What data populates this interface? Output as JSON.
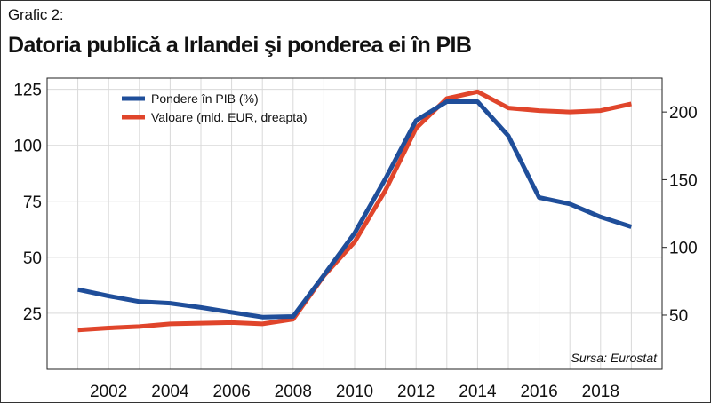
{
  "header": {
    "label": "Grafic 2:",
    "title": "Datoria publică a Irlandei şi ponderea ei în PIB"
  },
  "chart_data": {
    "type": "line",
    "title": "Datoria publică a Irlandei şi ponderea ei în PIB",
    "x": [
      2001,
      2002,
      2003,
      2004,
      2005,
      2006,
      2007,
      2008,
      2009,
      2010,
      2011,
      2012,
      2013,
      2014,
      2015,
      2016,
      2017,
      2018,
      2019
    ],
    "x_ticks": [
      "2002",
      "2004",
      "2006",
      "2008",
      "2010",
      "2012",
      "2014",
      "2016",
      "2018"
    ],
    "xlim": [
      2000,
      2020
    ],
    "y_left": {
      "ticks": [
        "25",
        "50",
        "75",
        "100",
        "125"
      ],
      "ylim": [
        0,
        130
      ]
    },
    "y_right": {
      "ticks": [
        "50",
        "100",
        "150",
        "200"
      ],
      "ylim": [
        10,
        225
      ]
    },
    "grid": true,
    "legend_position": "top-left",
    "series": [
      {
        "name": "Pondere în PIB (%)",
        "axis": "left",
        "color": "#1f4e9a",
        "values": [
          35.6,
          32.7,
          30.2,
          29.5,
          27.6,
          25.4,
          23.3,
          23.6,
          42.0,
          60.8,
          85.0,
          111.1,
          119.5,
          119.5,
          104.2,
          76.7,
          73.8,
          68.0,
          63.6
        ]
      },
      {
        "name": "Valoare (mld. EUR, dreapta)",
        "axis": "right",
        "color": "#e0452b",
        "values": [
          39.0,
          40.5,
          41.5,
          43.5,
          44.0,
          44.5,
          43.5,
          47.0,
          79.0,
          104.0,
          142.0,
          188.0,
          210.0,
          215.0,
          203.0,
          201.0,
          200.0,
          201.0,
          206.0
        ]
      }
    ],
    "source": "Sursa: Eurostat"
  },
  "colors": {
    "line_left": "#1f4e9a",
    "line_right": "#e0452b",
    "grid": "#d9d9d9"
  }
}
